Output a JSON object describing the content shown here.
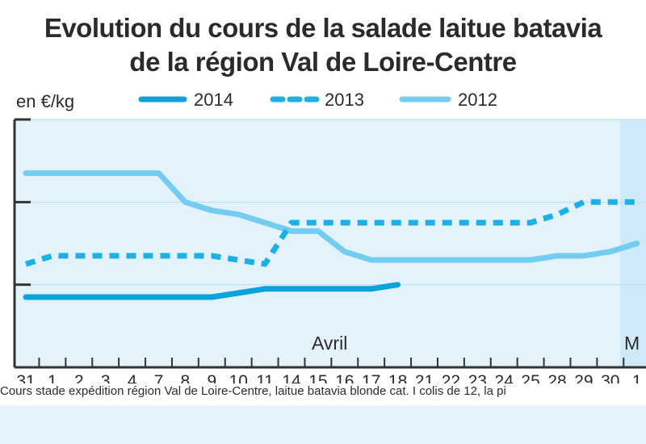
{
  "chart_data": {
    "type": "line",
    "title": "Evolution du cours de la salade laitue batavia",
    "subtitle": "de la région Val de Loire-Centre",
    "ylabel": "en €/kg",
    "categories": [
      "31",
      "1",
      "2",
      "3",
      "4",
      "7",
      "8",
      "9",
      "10",
      "11",
      "14",
      "15",
      "16",
      "17",
      "18",
      "21",
      "22",
      "23",
      "24",
      "25",
      "28",
      "29",
      "30",
      "1"
    ],
    "annotations": [
      "Avril",
      "M"
    ],
    "ylim": [
      0,
      3
    ],
    "series": [
      {
        "name": "2014",
        "style": "solid",
        "color": "#0ba3dc",
        "values": [
          0.85,
          0.85,
          0.85,
          0.85,
          0.85,
          0.85,
          0.85,
          0.85,
          0.9,
          0.95,
          0.95,
          0.95,
          0.95,
          0.95,
          1.0,
          null,
          null,
          null,
          null,
          null,
          null,
          null,
          null,
          null
        ]
      },
      {
        "name": "2013",
        "style": "dashed",
        "color": "#1cb1e6",
        "values": [
          1.25,
          1.35,
          1.35,
          1.35,
          1.35,
          1.35,
          1.35,
          1.35,
          1.3,
          1.25,
          1.75,
          1.75,
          1.75,
          1.75,
          1.75,
          1.75,
          1.75,
          1.75,
          1.75,
          1.75,
          1.85,
          2.0,
          2.0,
          2.0
        ]
      },
      {
        "name": "2012",
        "style": "solid",
        "color": "#72cdf0",
        "values": [
          2.35,
          2.35,
          2.35,
          2.35,
          2.35,
          2.35,
          2.0,
          1.9,
          1.85,
          1.75,
          1.65,
          1.65,
          1.4,
          1.3,
          1.3,
          1.3,
          1.3,
          1.3,
          1.3,
          1.3,
          1.35,
          1.35,
          1.4,
          1.5
        ]
      }
    ],
    "colors": {
      "plot_bg": "#e3f2fb",
      "may_band": "#d0e9f8",
      "axis": "#333333"
    }
  },
  "footnote": "Cours stade expédition région Val de Loire-Centre, laitue batavia blonde cat. I colis de 12, la pi"
}
